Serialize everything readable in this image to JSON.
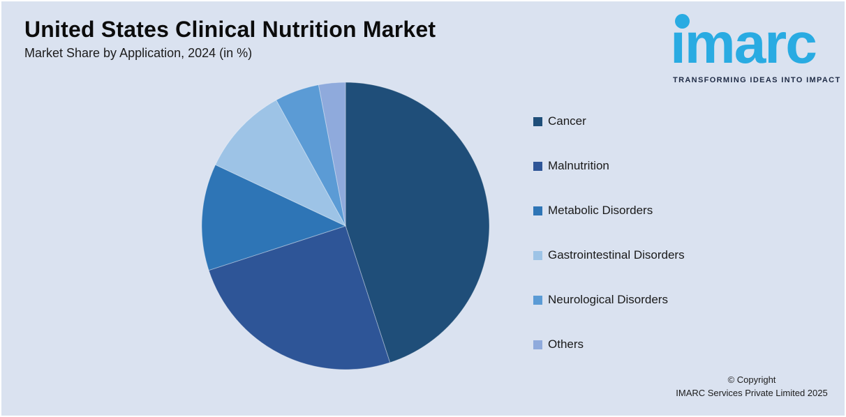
{
  "header": {
    "title": "United States Clinical Nutrition Market",
    "subtitle": "Market Share by Application, 2024 (in %)"
  },
  "logo": {
    "brand": "imarc",
    "tagline": "TRANSFORMING IDEAS INTO IMPACT",
    "brand_color": "#29ABE2",
    "tagline_color": "#1E2A44"
  },
  "chart_data": {
    "type": "pie",
    "title": "United States Clinical Nutrition Market",
    "subtitle": "Market Share by Application, 2024 (in %)",
    "unit": "%",
    "start_angle_deg": 0,
    "direction": "clockwise",
    "legend_position": "right",
    "segments": [
      {
        "label": "Cancer",
        "value": 45,
        "color": "#1F4E79"
      },
      {
        "label": "Malnutrition",
        "value": 25,
        "color": "#2E5597"
      },
      {
        "label": "Metabolic Disorders",
        "value": 12,
        "color": "#2E75B6"
      },
      {
        "label": "Gastrointestinal Disorders",
        "value": 10,
        "color": "#9DC3E6"
      },
      {
        "label": "Neurological Disorders",
        "value": 5,
        "color": "#5B9BD5"
      },
      {
        "label": "Others",
        "value": 3,
        "color": "#8FAADC"
      }
    ]
  },
  "footer": {
    "copyright_line1": "© Copyright",
    "copyright_line2": "IMARC Services Private Limited 2025"
  },
  "colors": {
    "background": "#DAE2F0",
    "slice_divider": "rgba(255,255,255,0.35)"
  }
}
